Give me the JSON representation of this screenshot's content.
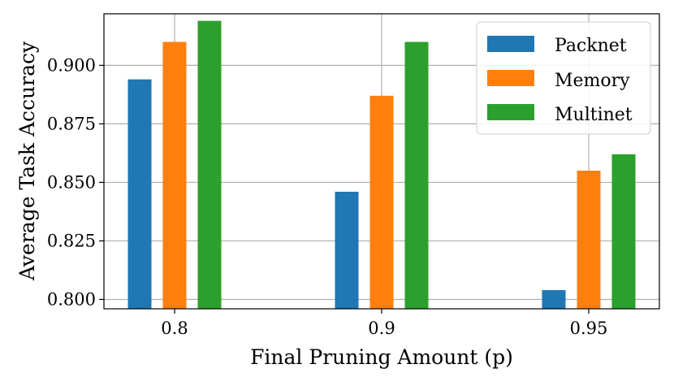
{
  "chart_data": {
    "type": "bar",
    "categories": [
      "0.8",
      "0.9",
      "0.95"
    ],
    "series": [
      {
        "name": "Packnet",
        "values": [
          0.894,
          0.846,
          0.804
        ],
        "color": "#1f77b4"
      },
      {
        "name": "Memory",
        "values": [
          0.91,
          0.887,
          0.855
        ],
        "color": "#ff7f0e"
      },
      {
        "name": "Multinet",
        "values": [
          0.919,
          0.91,
          0.862
        ],
        "color": "#2ca02c"
      }
    ],
    "xlabel": "Final Pruning Amount (p)",
    "ylabel": "Average Task Accuracy",
    "yticks": [
      "0.800",
      "0.825",
      "0.850",
      "0.875",
      "0.900"
    ],
    "ytick_values": [
      0.8,
      0.825,
      0.85,
      0.875,
      0.9
    ],
    "ylim": [
      0.796,
      0.922
    ],
    "grid": true,
    "legend_position": "top-right"
  }
}
